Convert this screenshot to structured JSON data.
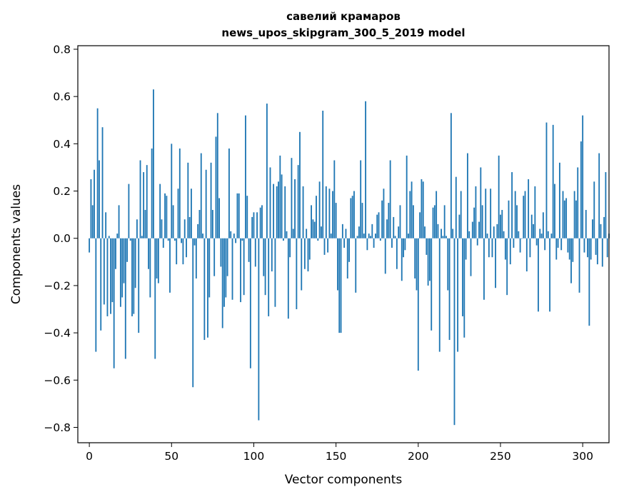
{
  "chart_data": {
    "type": "bar",
    "title": "савелий крамаров",
    "subtitle": "news_upos_skipgram_300_5_2019 model",
    "xlabel": "Vector components",
    "ylabel": "Components values",
    "xlim": [
      -7,
      316
    ],
    "ylim": [
      -0.865,
      0.815
    ],
    "xticks": [
      0,
      50,
      100,
      150,
      200,
      250,
      300
    ],
    "yticks": [
      -0.8,
      -0.6,
      -0.4,
      -0.2,
      0.0,
      0.2,
      0.4,
      0.6,
      0.8
    ],
    "xtick_labels": [
      "0",
      "50",
      "100",
      "150",
      "200",
      "250",
      "300"
    ],
    "ytick_labels": [
      "−0.8",
      "−0.6",
      "−0.4",
      "−0.2",
      "0.0",
      "0.2",
      "0.4",
      "0.6",
      "0.8"
    ],
    "bar_color": "#1f77b4",
    "grid": false,
    "values": [
      -0.06,
      0.25,
      0.14,
      0.29,
      -0.48,
      0.55,
      0.33,
      -0.39,
      0.47,
      -0.28,
      0.11,
      -0.33,
      0.01,
      -0.32,
      -0.27,
      -0.55,
      -0.13,
      0.02,
      0.14,
      -0.29,
      -0.25,
      -0.19,
      -0.51,
      -0.1,
      0.23,
      -0.01,
      -0.33,
      -0.32,
      -0.21,
      0.08,
      -0.4,
      0.33,
      0.01,
      0.28,
      0.12,
      0.31,
      -0.13,
      -0.25,
      0.38,
      0.63,
      -0.51,
      -0.17,
      -0.19,
      0.23,
      0.08,
      -0.04,
      0.19,
      0.18,
      -0.01,
      -0.23,
      0.4,
      0.14,
      -0.01,
      -0.11,
      0.21,
      0.38,
      -0.02,
      -0.11,
      0.08,
      -0.08,
      0.32,
      0.09,
      0.21,
      -0.63,
      -0.03,
      -0.17,
      0.06,
      0.12,
      0.36,
      0.02,
      -0.43,
      0.29,
      -0.42,
      -0.25,
      0.32,
      0.12,
      -0.16,
      0.43,
      0.53,
      0.17,
      -0.12,
      -0.38,
      -0.29,
      -0.25,
      -0.16,
      0.38,
      0.03,
      -0.26,
      0.02,
      -0.02,
      0.19,
      0.19,
      -0.27,
      -0.01,
      -0.24,
      0.52,
      0.18,
      -0.1,
      -0.55,
      0.09,
      0.11,
      -0.12,
      0.11,
      -0.77,
      0.13,
      0.14,
      -0.16,
      -0.24,
      0.57,
      -0.33,
      0.3,
      -0.14,
      0.23,
      -0.29,
      0.22,
      0.24,
      0.35,
      0.27,
      -0.01,
      0.22,
      0.03,
      -0.34,
      -0.08,
      0.34,
      0.04,
      0.25,
      -0.3,
      0.31,
      0.45,
      -0.22,
      0.22,
      -0.13,
      0.04,
      -0.14,
      -0.09,
      0.14,
      0.08,
      0.07,
      0.18,
      -0.01,
      0.24,
      0.05,
      0.54,
      -0.07,
      0.22,
      -0.06,
      0.21,
      0.02,
      0.2,
      0.33,
      0.15,
      -0.22,
      -0.4,
      -0.4,
      0.06,
      -0.04,
      0.04,
      -0.17,
      -0.1,
      0.17,
      0.18,
      0.2,
      -0.23,
      0.01,
      0.05,
      0.33,
      0.15,
      0.02,
      0.58,
      -0.05,
      0.02,
      0.01,
      0.06,
      -0.04,
      0.02,
      0.1,
      0.11,
      -0.01,
      0.16,
      0.21,
      -0.15,
      0.08,
      0.15,
      0.33,
      -0.04,
      0.09,
      0.01,
      -0.13,
      0.05,
      0.14,
      -0.18,
      -0.08,
      -0.05,
      0.35,
      0.02,
      0.2,
      0.24,
      0.14,
      -0.17,
      -0.22,
      -0.56,
      0.11,
      0.25,
      0.24,
      0.05,
      -0.07,
      -0.2,
      -0.18,
      -0.39,
      0.13,
      0.14,
      0.2,
      0.06,
      -0.48,
      0.04,
      0.01,
      0.14,
      0.01,
      -0.22,
      -0.43,
      0.53,
      0.04,
      -0.79,
      0.26,
      -0.48,
      0.1,
      0.2,
      -0.33,
      -0.42,
      -0.09,
      0.36,
      0.03,
      -0.16,
      0.07,
      0.13,
      0.22,
      -0.03,
      0.07,
      0.3,
      0.14,
      -0.26,
      0.21,
      0.02,
      -0.08,
      0.21,
      -0.08,
      0.05,
      -0.21,
      0.06,
      0.35,
      0.1,
      0.12,
      0.03,
      -0.09,
      -0.24,
      0.16,
      -0.11,
      0.28,
      -0.04,
      0.2,
      0.14,
      0.03,
      -0.06,
      0.0,
      0.18,
      0.2,
      -0.14,
      0.25,
      -0.08,
      0.1,
      0.06,
      0.22,
      -0.03,
      -0.31,
      0.04,
      0.02,
      0.11,
      -0.05,
      0.49,
      0.03,
      -0.31,
      0.02,
      0.48,
      0.23,
      -0.09,
      -0.04,
      0.32,
      -0.05,
      0.2,
      0.16,
      0.17,
      -0.06,
      -0.09,
      -0.19,
      -0.1,
      0.2,
      0.16,
      0.3,
      -0.23,
      0.41,
      0.52,
      -0.06,
      0.12,
      -0.08,
      -0.37,
      -0.09,
      0.08,
      0.24,
      -0.07,
      -0.11,
      0.36,
      0.06,
      -0.12,
      0.09,
      0.28,
      -0.08,
      0.02
    ]
  }
}
